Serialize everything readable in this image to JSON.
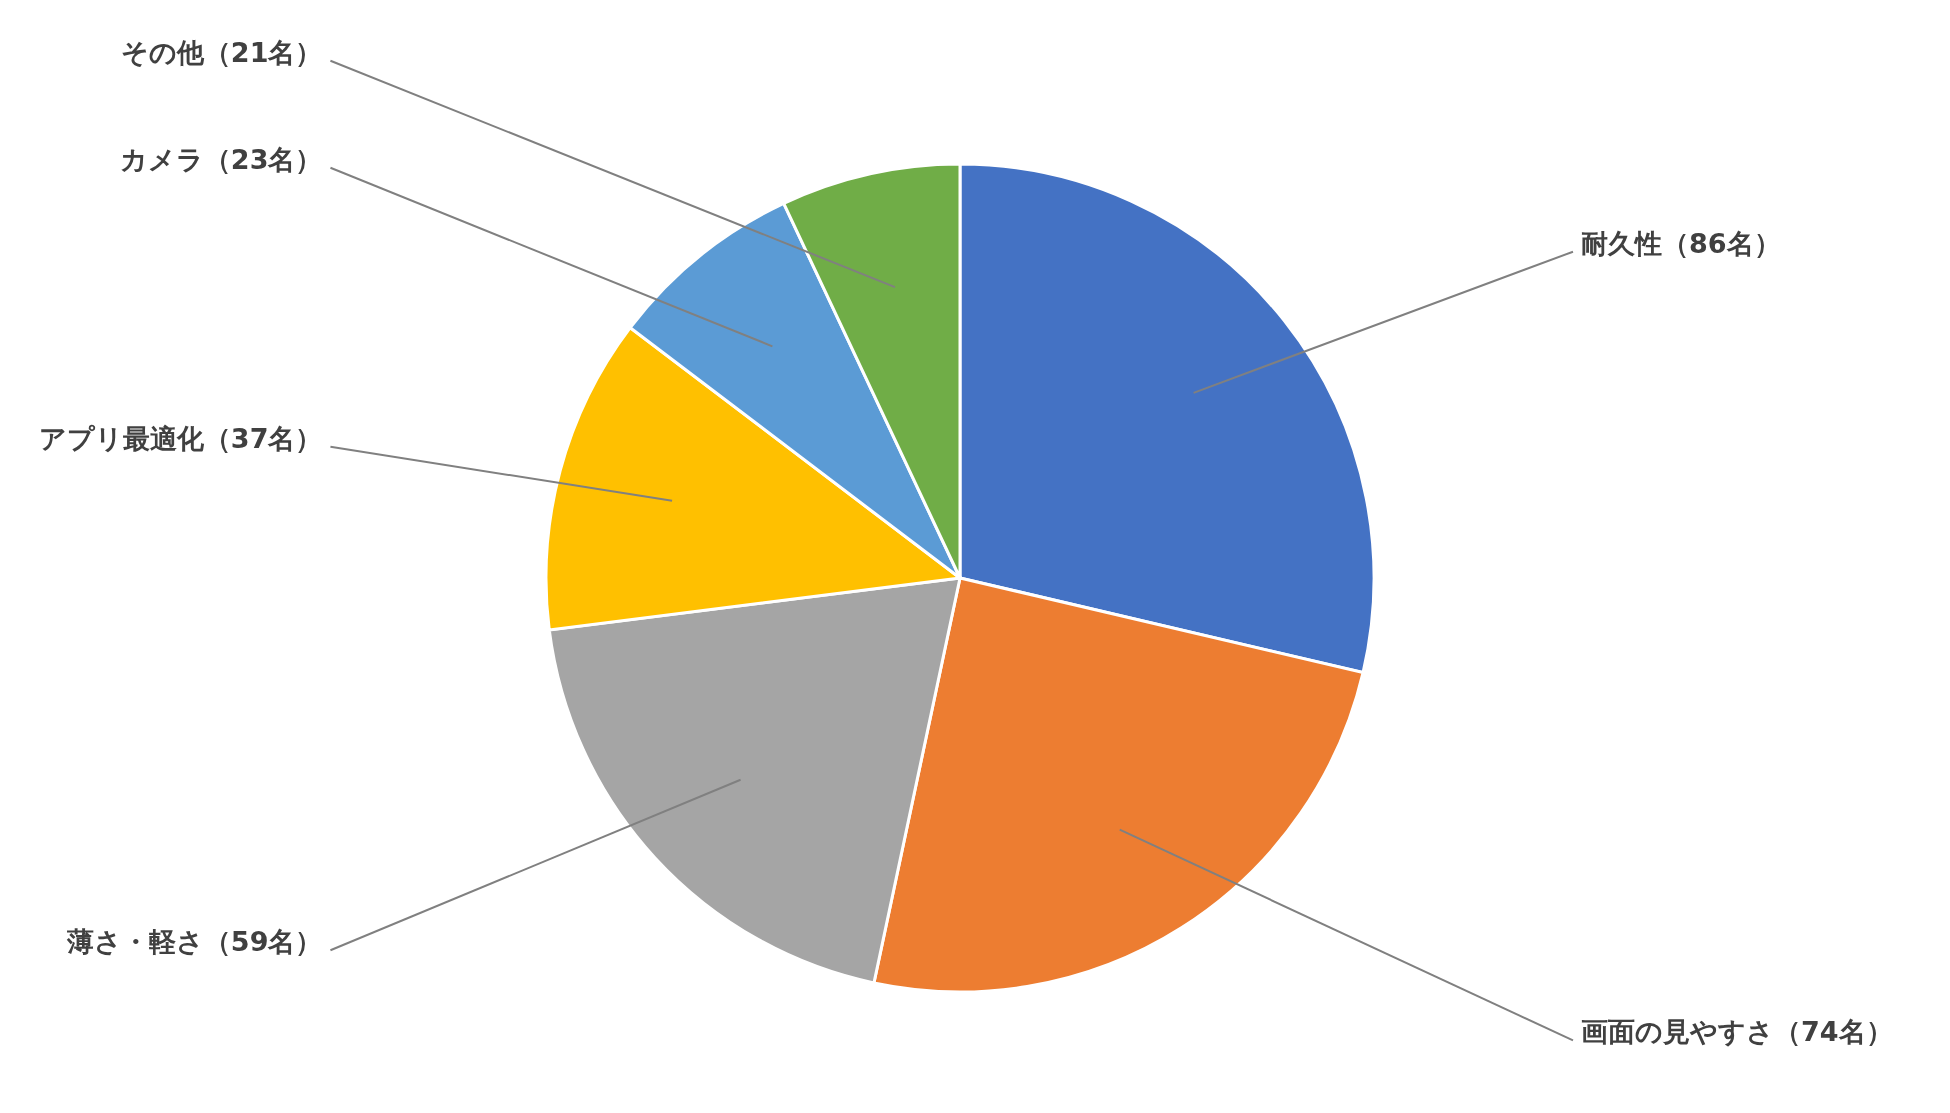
{
  "chart_data": {
    "type": "pie",
    "categories": [
      "耐久性（86名）",
      "画面の見やすさ（74名）",
      "薄さ・軽さ（59名）",
      "アプリ最適化（37名）",
      "カメラ（23名）",
      "その他（21名）"
    ],
    "values": [
      86,
      74,
      59,
      37,
      23,
      21
    ],
    "colors": [
      "#4472c4",
      "#ed7d31",
      "#a5a5a5",
      "#ffc000",
      "#5b9bd5",
      "#70ad47"
    ]
  }
}
